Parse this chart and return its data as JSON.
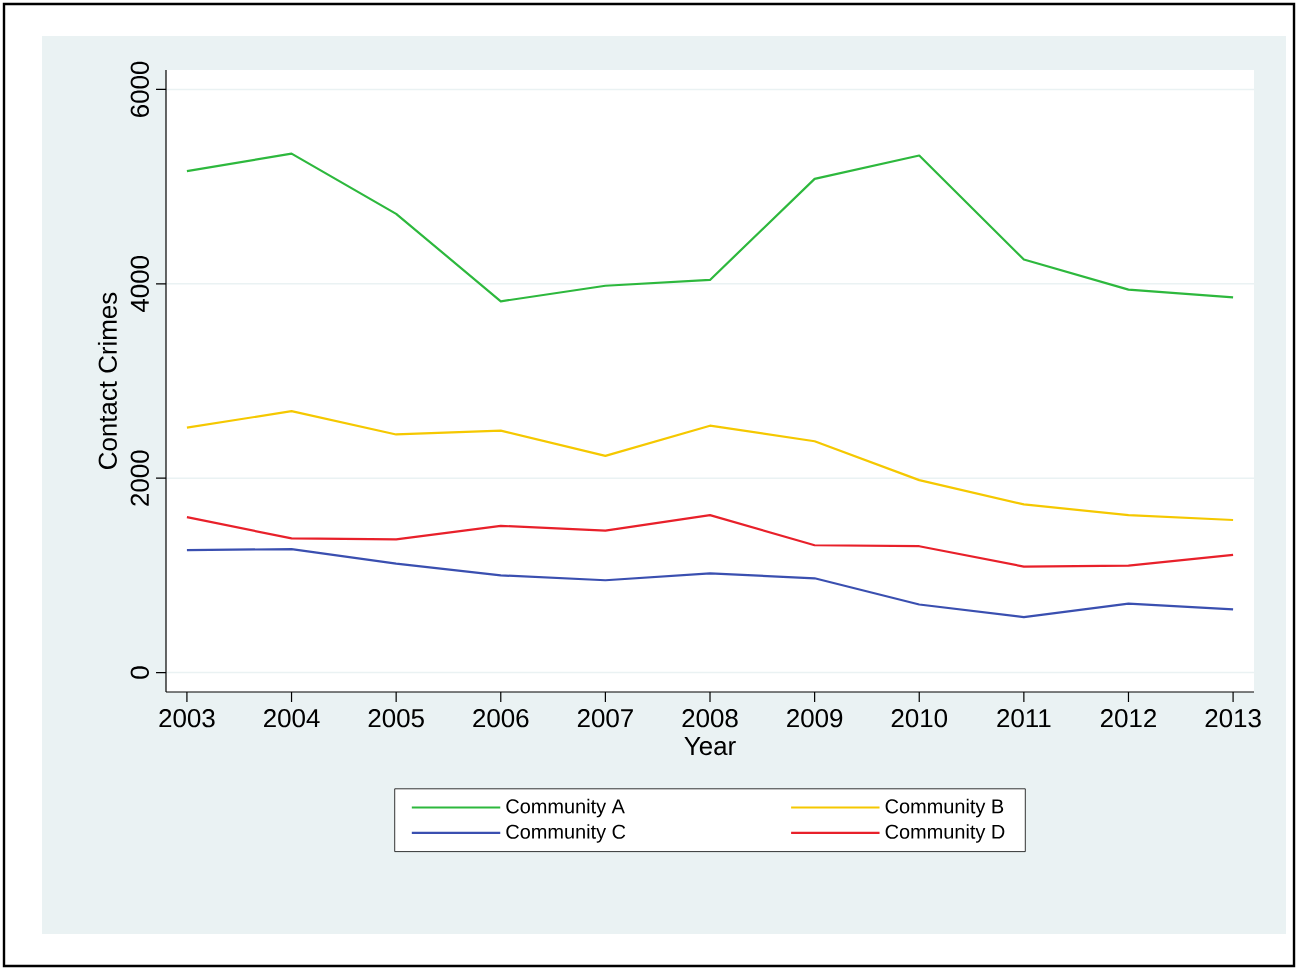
{
  "chart_data": {
    "type": "line",
    "xlabel": "Year",
    "ylabel": "Contact Crimes",
    "x": [
      2003,
      2004,
      2005,
      2006,
      2007,
      2008,
      2009,
      2010,
      2011,
      2012,
      2013
    ],
    "xlim": [
      2002.8,
      2013.2
    ],
    "xticks": [
      2003,
      2004,
      2005,
      2006,
      2007,
      2008,
      2009,
      2010,
      2011,
      2012,
      2013
    ],
    "ylim": [
      -200,
      6200
    ],
    "yticks": [
      0,
      2000,
      4000,
      6000
    ],
    "grid": "y",
    "legend": "bottom",
    "marker": "none",
    "line_style": "solid",
    "series": [
      {
        "name": "Community A",
        "color": "#2db83d",
        "values": [
          5160,
          5340,
          4720,
          3820,
          3980,
          4040,
          5080,
          5320,
          4250,
          3940,
          3860
        ]
      },
      {
        "name": "Community B",
        "color": "#f5c800",
        "values": [
          2520,
          2690,
          2450,
          2490,
          2230,
          2540,
          2380,
          1980,
          1730,
          1620,
          1570
        ]
      },
      {
        "name": "Community C",
        "color": "#3a4fb0",
        "values": [
          1260,
          1270,
          1120,
          1000,
          950,
          1020,
          970,
          700,
          570,
          710,
          650
        ]
      },
      {
        "name": "Community D",
        "color": "#e8202a",
        "values": [
          1600,
          1380,
          1370,
          1510,
          1460,
          1620,
          1310,
          1300,
          1090,
          1100,
          1210
        ]
      }
    ]
  }
}
